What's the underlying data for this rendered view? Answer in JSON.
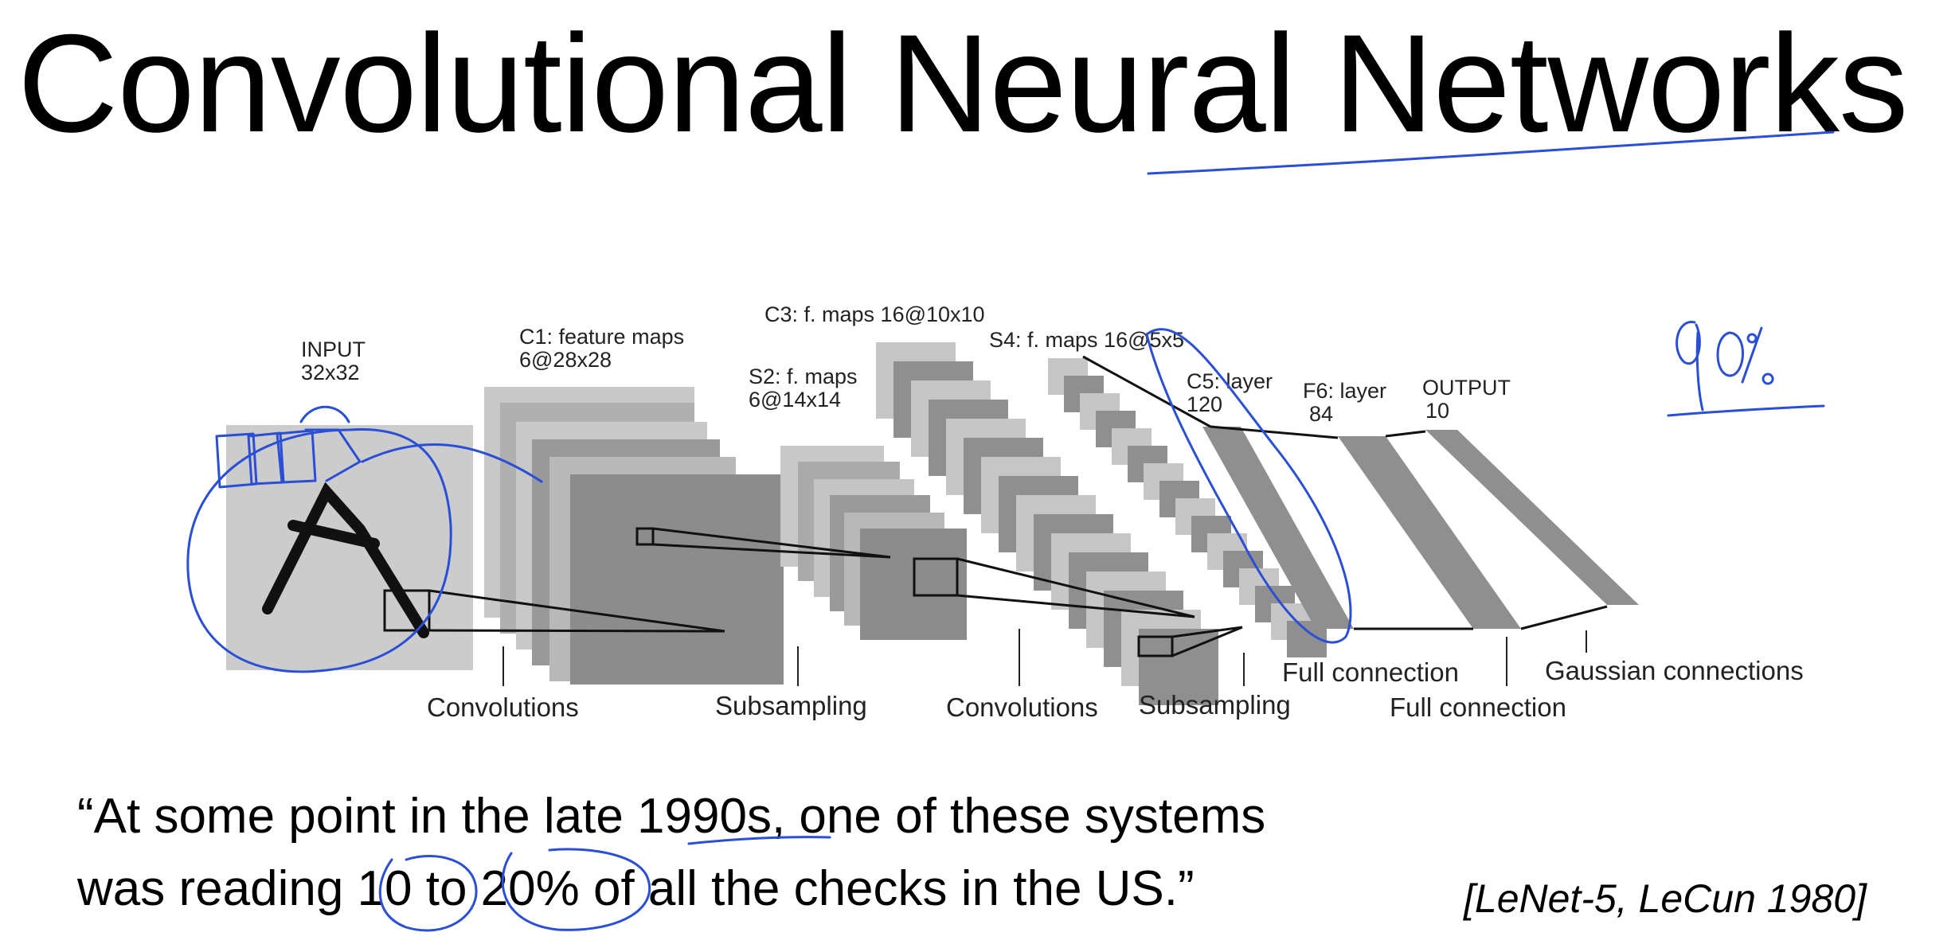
{
  "slide": {
    "title": "Convolutional Neural Networks",
    "quote_line1": "“At some point in the late 1990s, one of these systems",
    "quote_line2": "was reading 10 to 20% of all the checks in the US.”",
    "citation": "[LeNet-5, LeCun 1980]"
  },
  "diagram": {
    "layers": {
      "input_name": "INPUT",
      "input_size": "32x32",
      "c1_name": "C1: feature maps",
      "c1_size": "6@28x28",
      "s2_name": "S2: f. maps",
      "s2_size": "6@14x14",
      "c3": "C3: f. maps 16@10x10",
      "s4": "S4: f. maps 16@5x5",
      "c5_name": "C5: layer",
      "c5_size": "120",
      "f6_name": "F6: layer",
      "f6_size": "84",
      "output_name": "OUTPUT",
      "output_size": "10"
    },
    "operations": {
      "conv1": "Convolutions",
      "sub1": "Subsampling",
      "conv2": "Convolutions",
      "sub2": "Subsampling",
      "full1": "Full connection",
      "full2": "Full connection",
      "gauss": "Gaussian connections"
    }
  },
  "annotations": {
    "handwritten_percent": "90%",
    "ink_color": "#2a4fd6"
  },
  "colors": {
    "map_light": "#cccccc",
    "map_mid": "#aaaaaa",
    "map_dark": "#888888"
  }
}
